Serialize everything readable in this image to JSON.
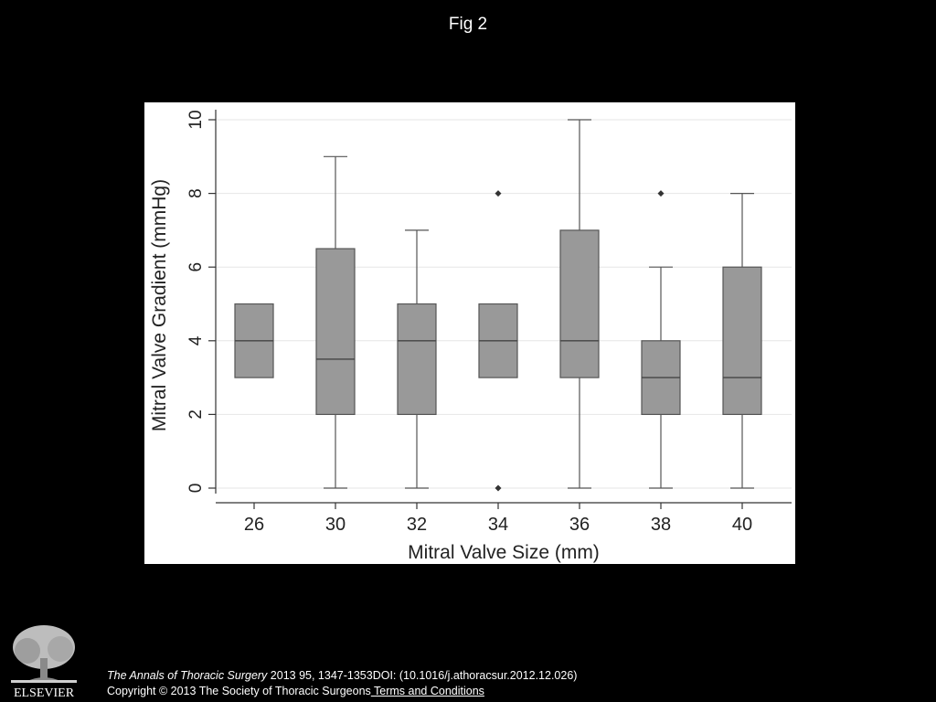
{
  "figure": {
    "title": "Fig 2"
  },
  "chart_data": {
    "type": "boxplot",
    "xlabel": "Mitral Valve Size (mm)",
    "ylabel": "Mitral Valve Gradient (mmHg)",
    "ylim": [
      0,
      10
    ],
    "yticks": [
      "0",
      "2",
      "4",
      "6",
      "8",
      "10"
    ],
    "grid": true,
    "box_color": "#999999",
    "categories": [
      "26",
      "30",
      "32",
      "34",
      "36",
      "38",
      "40"
    ],
    "boxes": [
      {
        "category": "26",
        "whisker_low": 3,
        "q1": 3,
        "median": 4,
        "q3": 5,
        "whisker_high": 5,
        "outliers": []
      },
      {
        "category": "30",
        "whisker_low": 0,
        "q1": 2,
        "median": 3.5,
        "q3": 6.5,
        "whisker_high": 9,
        "outliers": []
      },
      {
        "category": "32",
        "whisker_low": 0,
        "q1": 2,
        "median": 4,
        "q3": 5,
        "whisker_high": 7,
        "outliers": []
      },
      {
        "category": "34",
        "whisker_low": 3,
        "q1": 3,
        "median": 4,
        "q3": 5,
        "whisker_high": 5,
        "outliers": [
          0,
          8
        ]
      },
      {
        "category": "36",
        "whisker_low": 0,
        "q1": 3,
        "median": 4,
        "q3": 7,
        "whisker_high": 10,
        "outliers": []
      },
      {
        "category": "38",
        "whisker_low": 0,
        "q1": 2,
        "median": 3,
        "q3": 4,
        "whisker_high": 6,
        "outliers": [
          8
        ]
      },
      {
        "category": "40",
        "whisker_low": 0,
        "q1": 2,
        "median": 3,
        "q3": 6,
        "whisker_high": 8,
        "outliers": []
      }
    ]
  },
  "footer": {
    "journal": "The Annals of Thoracic Surgery",
    "citation": " 2013 95, 1347-1353DOI: (10.1016/j.athoracsur.2012.12.026)",
    "copyright": "Copyright © 2013 The Society of Thoracic Surgeons",
    "terms_link": " Terms and Conditions",
    "publisher": "ELSEVIER"
  }
}
